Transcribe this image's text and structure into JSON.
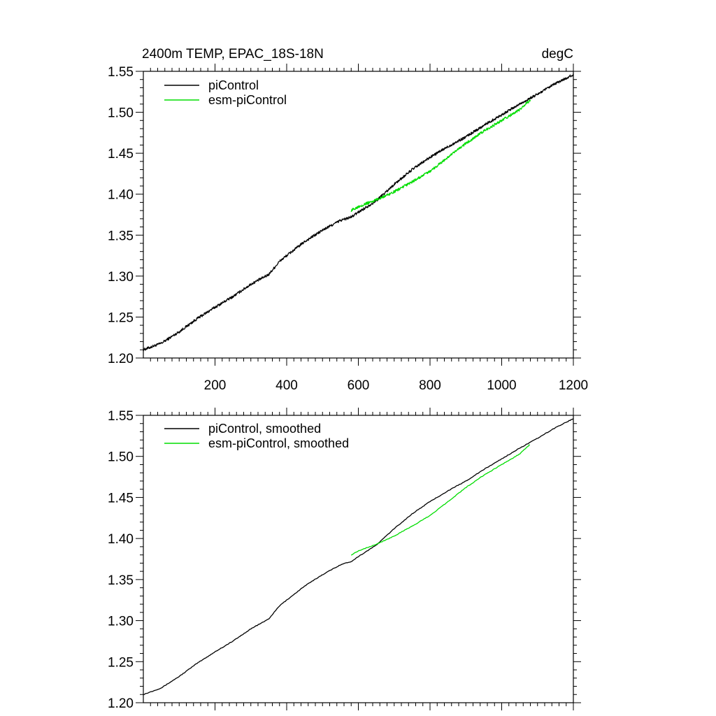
{
  "chart_data": [
    {
      "type": "line",
      "title": "2400m TEMP, EPAC_18S-18N",
      "units": "degC",
      "xlabel": "",
      "ylabel": "",
      "xlim": [
        0,
        1200
      ],
      "ylim": [
        1.2,
        1.55
      ],
      "x_ticks": [
        200,
        400,
        600,
        800,
        1000,
        1200
      ],
      "x_tick_labels": [
        "200",
        "400",
        "600",
        "800",
        "1000",
        "1200"
      ],
      "y_ticks": [
        1.2,
        1.25,
        1.3,
        1.35,
        1.4,
        1.45,
        1.5,
        1.55
      ],
      "y_tick_labels": [
        "1.20",
        "1.25",
        "1.30",
        "1.35",
        "1.40",
        "1.45",
        "1.50",
        "1.55"
      ],
      "legend_position": "top-left",
      "series": [
        {
          "name": "piControl",
          "color": "#000000",
          "noisy": true,
          "x": [
            0,
            50,
            100,
            150,
            200,
            250,
            300,
            350,
            380,
            400,
            450,
            500,
            550,
            580,
            600,
            650,
            700,
            750,
            800,
            850,
            900,
            950,
            1000,
            1050,
            1100,
            1150,
            1200
          ],
          "y": [
            1.21,
            1.218,
            1.232,
            1.248,
            1.262,
            1.275,
            1.29,
            1.302,
            1.318,
            1.325,
            1.342,
            1.356,
            1.368,
            1.372,
            1.378,
            1.392,
            1.412,
            1.43,
            1.445,
            1.458,
            1.47,
            1.484,
            1.497,
            1.51,
            1.522,
            1.535,
            1.546
          ]
        },
        {
          "name": "esm-piControl",
          "color": "#00dd00",
          "noisy": true,
          "x": [
            580,
            600,
            650,
            700,
            750,
            800,
            850,
            900,
            950,
            1000,
            1050,
            1080
          ],
          "y": [
            1.38,
            1.385,
            1.393,
            1.403,
            1.415,
            1.428,
            1.445,
            1.462,
            1.477,
            1.49,
            1.503,
            1.515
          ]
        }
      ]
    },
    {
      "type": "line",
      "title": "",
      "units": "",
      "xlabel": "",
      "ylabel": "",
      "xlim": [
        0,
        1200
      ],
      "ylim": [
        1.2,
        1.55
      ],
      "x_ticks": [
        200,
        400,
        600,
        800,
        1000,
        1200
      ],
      "x_tick_labels": [],
      "y_ticks": [
        1.2,
        1.25,
        1.3,
        1.35,
        1.4,
        1.45,
        1.5,
        1.55
      ],
      "y_tick_labels": [
        "1.20",
        "1.25",
        "1.30",
        "1.35",
        "1.40",
        "1.45",
        "1.50",
        "1.55"
      ],
      "legend_position": "top-left",
      "series": [
        {
          "name": "piControl, smoothed",
          "color": "#000000",
          "noisy": false,
          "x": [
            0,
            50,
            100,
            150,
            200,
            250,
            300,
            350,
            380,
            400,
            450,
            500,
            550,
            580,
            600,
            650,
            700,
            750,
            800,
            850,
            900,
            950,
            1000,
            1050,
            1100,
            1150,
            1200
          ],
          "y": [
            1.21,
            1.218,
            1.232,
            1.248,
            1.262,
            1.275,
            1.29,
            1.302,
            1.318,
            1.325,
            1.342,
            1.356,
            1.368,
            1.372,
            1.378,
            1.392,
            1.412,
            1.43,
            1.445,
            1.458,
            1.47,
            1.484,
            1.497,
            1.51,
            1.522,
            1.535,
            1.546
          ]
        },
        {
          "name": "esm-piControl, smoothed",
          "color": "#00dd00",
          "noisy": false,
          "x": [
            580,
            600,
            650,
            700,
            750,
            800,
            850,
            900,
            950,
            1000,
            1050,
            1080
          ],
          "y": [
            1.38,
            1.385,
            1.393,
            1.403,
            1.415,
            1.428,
            1.445,
            1.462,
            1.477,
            1.49,
            1.503,
            1.515
          ]
        }
      ]
    }
  ]
}
